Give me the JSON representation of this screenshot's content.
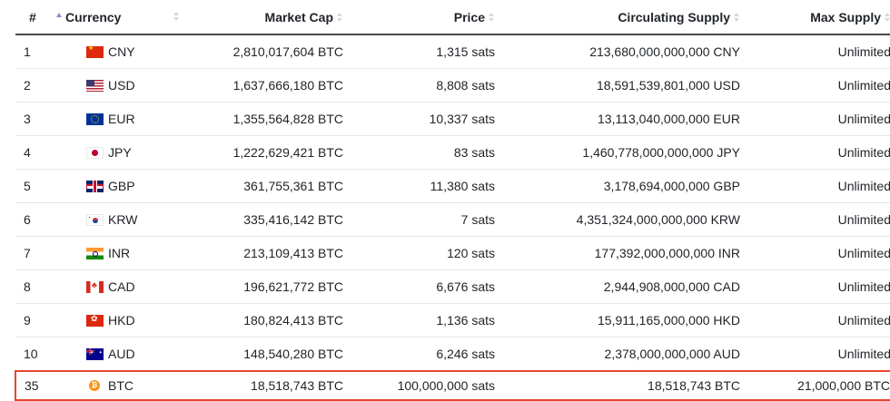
{
  "table": {
    "columns": [
      {
        "key": "rank",
        "label": "#",
        "sort": "asc"
      },
      {
        "key": "currency",
        "label": "Currency",
        "sort": "none"
      },
      {
        "key": "market_cap",
        "label": "Market Cap",
        "sort": "none"
      },
      {
        "key": "price",
        "label": "Price",
        "sort": "none"
      },
      {
        "key": "circulating_supply",
        "label": "Circulating Supply",
        "sort": "none"
      },
      {
        "key": "max_supply",
        "label": "Max Supply",
        "sort": "none"
      }
    ],
    "rows": [
      {
        "rank": "1",
        "flag": "china-flag-icon",
        "code": "CNY",
        "market_cap": "2,810,017,604 BTC",
        "price": "1,315 sats",
        "circulating_supply": "213,680,000,000,000 CNY",
        "max_supply": "Unlimited"
      },
      {
        "rank": "2",
        "flag": "usa-flag-icon",
        "code": "USD",
        "market_cap": "1,637,666,180 BTC",
        "price": "8,808 sats",
        "circulating_supply": "18,591,539,801,000 USD",
        "max_supply": "Unlimited"
      },
      {
        "rank": "3",
        "flag": "eu-flag-icon",
        "code": "EUR",
        "market_cap": "1,355,564,828 BTC",
        "price": "10,337 sats",
        "circulating_supply": "13,113,040,000,000 EUR",
        "max_supply": "Unlimited"
      },
      {
        "rank": "4",
        "flag": "japan-flag-icon",
        "code": "JPY",
        "market_cap": "1,222,629,421 BTC",
        "price": "83 sats",
        "circulating_supply": "1,460,778,000,000,000 JPY",
        "max_supply": "Unlimited"
      },
      {
        "rank": "5",
        "flag": "uk-flag-icon",
        "code": "GBP",
        "market_cap": "361,755,361 BTC",
        "price": "11,380 sats",
        "circulating_supply": "3,178,694,000,000 GBP",
        "max_supply": "Unlimited"
      },
      {
        "rank": "6",
        "flag": "south-korea-flag-icon",
        "code": "KRW",
        "market_cap": "335,416,142 BTC",
        "price": "7 sats",
        "circulating_supply": "4,351,324,000,000,000 KRW",
        "max_supply": "Unlimited"
      },
      {
        "rank": "7",
        "flag": "india-flag-icon",
        "code": "INR",
        "market_cap": "213,109,413 BTC",
        "price": "120 sats",
        "circulating_supply": "177,392,000,000,000 INR",
        "max_supply": "Unlimited"
      },
      {
        "rank": "8",
        "flag": "canada-flag-icon",
        "code": "CAD",
        "market_cap": "196,621,772 BTC",
        "price": "6,676 sats",
        "circulating_supply": "2,944,908,000,000 CAD",
        "max_supply": "Unlimited"
      },
      {
        "rank": "9",
        "flag": "hong-kong-flag-icon",
        "code": "HKD",
        "market_cap": "180,824,413 BTC",
        "price": "1,136 sats",
        "circulating_supply": "15,911,165,000,000 HKD",
        "max_supply": "Unlimited"
      },
      {
        "rank": "10",
        "flag": "australia-flag-icon",
        "code": "AUD",
        "market_cap": "148,540,280 BTC",
        "price": "6,246 sats",
        "circulating_supply": "2,378,000,000,000 AUD",
        "max_supply": "Unlimited"
      }
    ],
    "highlighted_row": {
      "rank": "35",
      "icon": "bitcoin-icon",
      "icon_glyph": "₿",
      "code": "BTC",
      "market_cap": "18,518,743 BTC",
      "price": "100,000,000 sats",
      "circulating_supply": "18,518,743 BTC",
      "max_supply": "21,000,000 BTC"
    }
  },
  "colors": {
    "highlight_border": "#e8452c",
    "sort_active": "#8a86e0",
    "sort_inactive": "#d4d8dc",
    "bitcoin": "#f7931a",
    "text": "#212529",
    "row_divider": "#e4e8ea"
  }
}
